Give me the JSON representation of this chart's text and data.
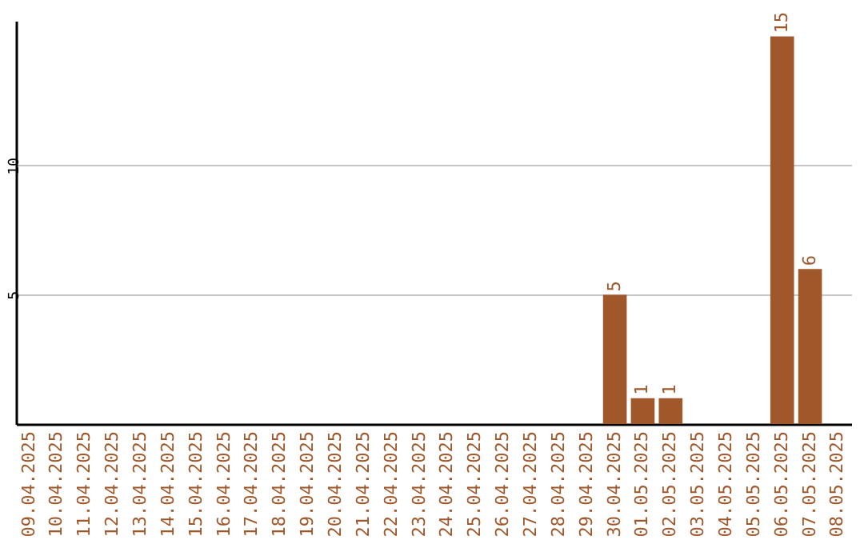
{
  "chart_data": {
    "type": "bar",
    "categories": [
      "09.04.2025",
      "10.04.2025",
      "11.04.2025",
      "12.04.2025",
      "13.04.2025",
      "14.04.2025",
      "15.04.2025",
      "16.04.2025",
      "17.04.2025",
      "18.04.2025",
      "19.04.2025",
      "20.04.2025",
      "21.04.2025",
      "22.04.2025",
      "23.04.2025",
      "24.04.2025",
      "25.04.2025",
      "26.04.2025",
      "27.04.2025",
      "28.04.2025",
      "29.04.2025",
      "30.04.2025",
      "01.05.2025",
      "02.05.2025",
      "03.05.2025",
      "04.05.2025",
      "05.05.2025",
      "06.05.2025",
      "07.05.2025",
      "08.05.2025"
    ],
    "values": [
      null,
      null,
      null,
      null,
      null,
      null,
      null,
      null,
      null,
      null,
      null,
      null,
      null,
      null,
      null,
      null,
      null,
      null,
      null,
      null,
      null,
      5,
      1,
      1,
      null,
      null,
      null,
      15,
      6,
      null
    ],
    "color": "#a0572a",
    "ylim": [
      0,
      15.6
    ],
    "yticks": [
      5,
      10
    ],
    "grid": "y",
    "data_labels": true
  }
}
